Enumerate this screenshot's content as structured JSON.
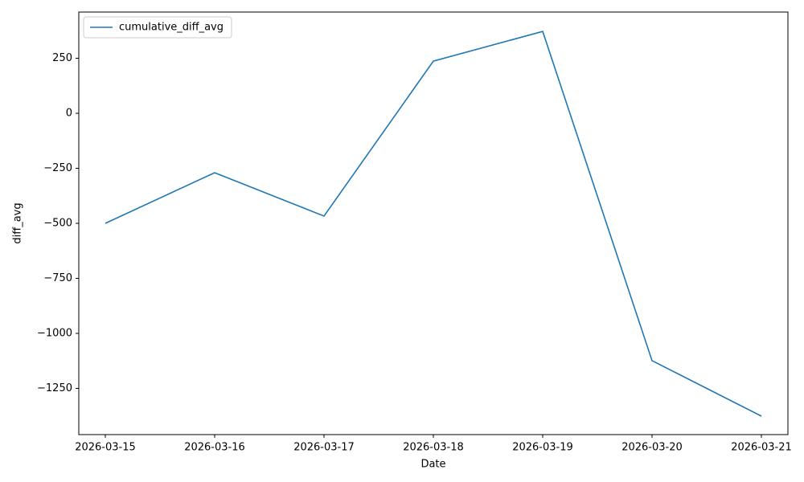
{
  "chart_data": {
    "type": "line",
    "x_label": "Date",
    "y_label": "diff_avg",
    "categories": [
      "2026-03-15",
      "2026-03-16",
      "2026-03-17",
      "2026-03-18",
      "2026-03-19",
      "2026-03-20",
      "2026-03-21"
    ],
    "series": [
      {
        "name": "cumulative_diff_avg",
        "color": "#1f77b4",
        "values": [
          -500,
          -270,
          -467,
          237,
          372,
          -1124,
          -1376
        ]
      }
    ],
    "ylim": [
      -1460,
      460
    ],
    "yticks": [
      {
        "value": -1250,
        "label": "−1250"
      },
      {
        "value": -1000,
        "label": "−1000"
      },
      {
        "value": -750,
        "label": "−750"
      },
      {
        "value": -500,
        "label": "−500"
      },
      {
        "value": -250,
        "label": "−250"
      },
      0,
      250
    ],
    "grid": false,
    "legend": "upper left"
  }
}
